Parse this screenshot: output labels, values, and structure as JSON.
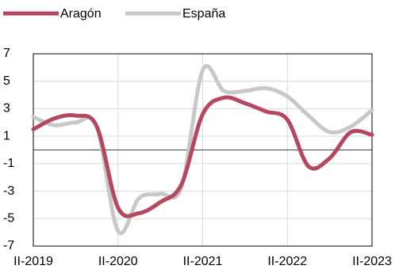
{
  "chart_data": {
    "type": "line",
    "categories": [
      "II-2019",
      null,
      null,
      null,
      "II-2020",
      null,
      null,
      null,
      "II-2021",
      null,
      null,
      null,
      "II-2022",
      null,
      null,
      null,
      "II-2023"
    ],
    "series": [
      {
        "name": "Aragón",
        "color": "#b5475e",
        "values": [
          1.5,
          2.3,
          2.5,
          1.7,
          -4.2,
          -4.6,
          -3.8,
          -2.5,
          2.6,
          3.8,
          3.4,
          2.8,
          2.2,
          -1.2,
          -0.6,
          1.3,
          1.1
        ]
      },
      {
        "name": "España",
        "color": "#c8c8c8",
        "values": [
          2.4,
          1.8,
          2.0,
          1.7,
          -5.9,
          -3.5,
          -3.2,
          -2.7,
          5.8,
          4.3,
          4.3,
          4.5,
          3.9,
          2.5,
          1.3,
          1.7,
          2.9
        ]
      }
    ],
    "ylim": [
      -7,
      7
    ],
    "yticks": [
      -7,
      -5,
      -3,
      -1,
      1,
      3,
      5,
      7
    ],
    "grid": true,
    "legend": "top"
  }
}
